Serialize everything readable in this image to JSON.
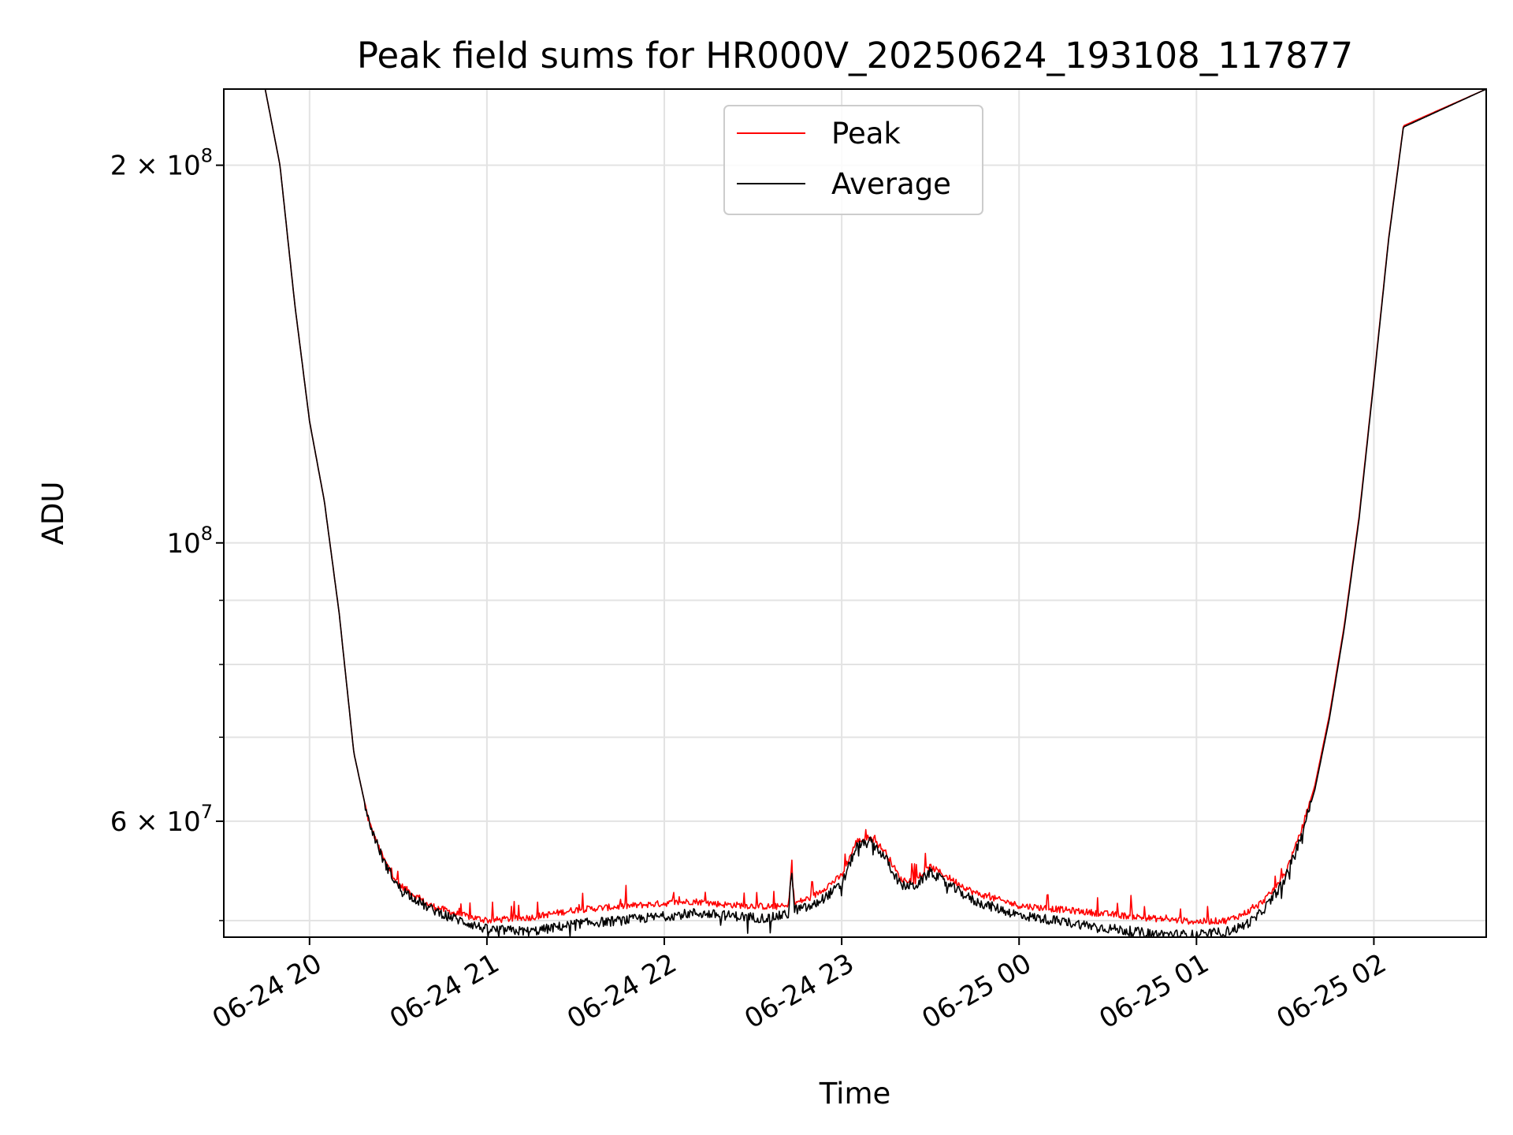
{
  "chart_data": {
    "type": "line",
    "title": "Peak field sums for HR000V_20250624_193108_117877",
    "xlabel": "Time",
    "ylabel": "ADU",
    "y_scale": "log",
    "xlim": [
      "2025-06-24 19:31",
      "2025-06-25 02:38"
    ],
    "ylim": [
      48500000,
      230000000
    ],
    "x_ticks": [
      "06-24 20",
      "06-24 21",
      "06-24 22",
      "06-24 23",
      "06-25 00",
      "06-25 01",
      "06-25 02"
    ],
    "y_ticks": [
      {
        "value": 200000000,
        "mantissa": "2",
        "exponent": "8",
        "label": "2×10^8"
      },
      {
        "value": 100000000,
        "mantissa": "",
        "exponent": "8",
        "label": "10^8"
      },
      {
        "value": 60000000,
        "mantissa": "6",
        "exponent": "7",
        "label": "6×10^7"
      }
    ],
    "y_minor_ticks": [
      50000000,
      70000000,
      80000000,
      90000000
    ],
    "grid": true,
    "legend_position": "top-center",
    "series": [
      {
        "name": "Peak",
        "color": "#ff0000",
        "x": [
          "2025-06-24 19:31",
          "2025-06-24 19:45",
          "2025-06-24 19:50",
          "2025-06-24 19:55",
          "2025-06-24 20:00",
          "2025-06-24 20:05",
          "2025-06-24 20:10",
          "2025-06-24 20:15",
          "2025-06-24 20:20",
          "2025-06-24 20:25",
          "2025-06-24 20:30",
          "2025-06-24 20:40",
          "2025-06-24 20:50",
          "2025-06-24 21:00",
          "2025-06-24 21:15",
          "2025-06-24 21:30",
          "2025-06-24 21:45",
          "2025-06-24 22:00",
          "2025-06-24 22:10",
          "2025-06-24 22:20",
          "2025-06-24 22:35",
          "2025-06-24 22:42",
          "2025-06-24 22:43",
          "2025-06-24 22:44",
          "2025-06-24 22:50",
          "2025-06-24 23:00",
          "2025-06-24 23:05",
          "2025-06-24 23:10",
          "2025-06-24 23:15",
          "2025-06-24 23:20",
          "2025-06-24 23:25",
          "2025-06-24 23:30",
          "2025-06-24 23:35",
          "2025-06-24 23:45",
          "2025-06-25 00:00",
          "2025-06-25 00:15",
          "2025-06-25 00:30",
          "2025-06-25 00:45",
          "2025-06-25 01:00",
          "2025-06-25 01:10",
          "2025-06-25 01:15",
          "2025-06-25 01:20",
          "2025-06-25 01:25",
          "2025-06-25 01:30",
          "2025-06-25 01:35",
          "2025-06-25 01:40",
          "2025-06-25 01:45",
          "2025-06-25 01:50",
          "2025-06-25 01:55",
          "2025-06-25 02:00",
          "2025-06-25 02:05",
          "2025-06-25 02:10",
          "2025-06-25 02:38"
        ],
        "values": [
          230000000,
          230000000,
          200000000,
          155000000,
          125000000,
          108000000,
          88000000,
          68000000,
          60000000,
          56000000,
          53500000,
          51500000,
          50600000,
          50000000,
          50300000,
          51000000,
          51300000,
          51600000,
          51800000,
          51500000,
          51300000,
          51300000,
          55300000,
          51600000,
          52200000,
          54300000,
          57800000,
          58300000,
          56600000,
          53900000,
          53800000,
          55200000,
          54300000,
          52600000,
          51400000,
          51000000,
          50600000,
          50200000,
          49900000,
          50000000,
          50500000,
          51200000,
          52500000,
          54500000,
          58500000,
          64000000,
          73000000,
          86000000,
          105000000,
          135000000,
          175000000,
          215000000,
          230000000
        ]
      },
      {
        "name": "Average",
        "color": "#000000",
        "x": [
          "2025-06-24 19:31",
          "2025-06-24 19:45",
          "2025-06-24 19:50",
          "2025-06-24 19:55",
          "2025-06-24 20:00",
          "2025-06-24 20:05",
          "2025-06-24 20:10",
          "2025-06-24 20:15",
          "2025-06-24 20:20",
          "2025-06-24 20:25",
          "2025-06-24 20:30",
          "2025-06-24 20:40",
          "2025-06-24 20:50",
          "2025-06-24 21:00",
          "2025-06-24 21:15",
          "2025-06-24 21:30",
          "2025-06-24 21:45",
          "2025-06-24 22:00",
          "2025-06-24 22:10",
          "2025-06-24 22:20",
          "2025-06-24 22:35",
          "2025-06-24 22:42",
          "2025-06-24 22:43",
          "2025-06-24 22:44",
          "2025-06-24 22:50",
          "2025-06-24 23:00",
          "2025-06-24 23:05",
          "2025-06-24 23:10",
          "2025-06-24 23:15",
          "2025-06-24 23:20",
          "2025-06-24 23:25",
          "2025-06-24 23:30",
          "2025-06-24 23:35",
          "2025-06-24 23:45",
          "2025-06-25 00:00",
          "2025-06-25 00:15",
          "2025-06-25 00:30",
          "2025-06-25 00:45",
          "2025-06-25 01:00",
          "2025-06-25 01:10",
          "2025-06-25 01:15",
          "2025-06-25 01:20",
          "2025-06-25 01:25",
          "2025-06-25 01:30",
          "2025-06-25 01:35",
          "2025-06-25 01:40",
          "2025-06-25 01:45",
          "2025-06-25 01:50",
          "2025-06-25 01:55",
          "2025-06-25 02:00",
          "2025-06-25 02:05",
          "2025-06-25 02:10",
          "2025-06-25 02:38"
        ],
        "values": [
          230000000,
          230000000,
          200000000,
          155000000,
          125000000,
          108000000,
          88000000,
          68000000,
          60000000,
          55800000,
          53200000,
          51200000,
          50100000,
          49200000,
          49000000,
          49700000,
          50000000,
          50400000,
          50700000,
          50500000,
          50200000,
          50600000,
          55000000,
          51000000,
          51300000,
          53400000,
          57300000,
          57800000,
          56000000,
          53300000,
          53300000,
          54700000,
          53600000,
          51800000,
          50500000,
          49900000,
          49300000,
          48800000,
          48700000,
          49000000,
          49400000,
          50200000,
          51800000,
          54000000,
          58000000,
          63500000,
          72500000,
          85500000,
          104500000,
          134500000,
          174500000,
          214500000,
          230000000
        ]
      }
    ]
  }
}
